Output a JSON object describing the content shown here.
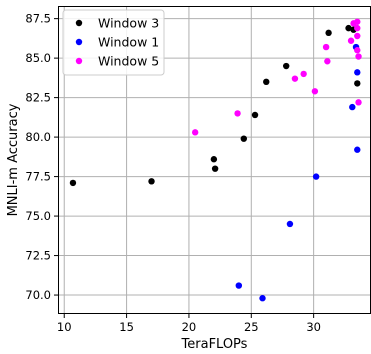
{
  "chart_data": {
    "type": "scatter",
    "title": "",
    "xlabel": "TeraFLOPs",
    "ylabel": "MNLI-m Accuracy",
    "xlim": [
      9.5,
      34.6
    ],
    "ylim": [
      68.8,
      88.3
    ],
    "xticks": [
      10,
      15,
      20,
      25,
      30
    ],
    "yticks": [
      70.0,
      72.5,
      75.0,
      77.5,
      80.0,
      82.5,
      85.0,
      87.5
    ],
    "grid": true,
    "legend_position": "top-left",
    "series": [
      {
        "name": "Window 3",
        "color": "#000000",
        "points": [
          {
            "x": 10.7,
            "y": 77.1
          },
          {
            "x": 17.0,
            "y": 77.2
          },
          {
            "x": 22.0,
            "y": 78.6
          },
          {
            "x": 22.1,
            "y": 78.0
          },
          {
            "x": 24.4,
            "y": 79.9
          },
          {
            "x": 25.3,
            "y": 81.4
          },
          {
            "x": 26.2,
            "y": 83.5
          },
          {
            "x": 27.8,
            "y": 84.5
          },
          {
            "x": 31.2,
            "y": 86.6
          },
          {
            "x": 32.8,
            "y": 86.9
          },
          {
            "x": 33.2,
            "y": 86.8
          },
          {
            "x": 33.5,
            "y": 83.4
          }
        ]
      },
      {
        "name": "Window 1",
        "color": "#0000ff",
        "points": [
          {
            "x": 24.0,
            "y": 70.6
          },
          {
            "x": 25.9,
            "y": 69.8
          },
          {
            "x": 28.1,
            "y": 74.5
          },
          {
            "x": 30.2,
            "y": 77.5
          },
          {
            "x": 33.1,
            "y": 81.9
          },
          {
            "x": 33.4,
            "y": 85.7
          },
          {
            "x": 33.5,
            "y": 84.1
          },
          {
            "x": 33.5,
            "y": 79.2
          }
        ]
      },
      {
        "name": "Window 5",
        "color": "#ff00ff",
        "points": [
          {
            "x": 20.5,
            "y": 80.3
          },
          {
            "x": 23.9,
            "y": 81.5
          },
          {
            "x": 28.5,
            "y": 83.7
          },
          {
            "x": 29.2,
            "y": 84.0
          },
          {
            "x": 30.1,
            "y": 82.9
          },
          {
            "x": 31.0,
            "y": 85.7
          },
          {
            "x": 31.1,
            "y": 84.8
          },
          {
            "x": 33.0,
            "y": 86.1
          },
          {
            "x": 33.2,
            "y": 87.2
          },
          {
            "x": 33.5,
            "y": 87.3
          },
          {
            "x": 33.5,
            "y": 86.9
          },
          {
            "x": 33.5,
            "y": 86.4
          },
          {
            "x": 33.5,
            "y": 85.5
          },
          {
            "x": 33.6,
            "y": 85.1
          },
          {
            "x": 33.6,
            "y": 82.2
          }
        ]
      }
    ]
  }
}
